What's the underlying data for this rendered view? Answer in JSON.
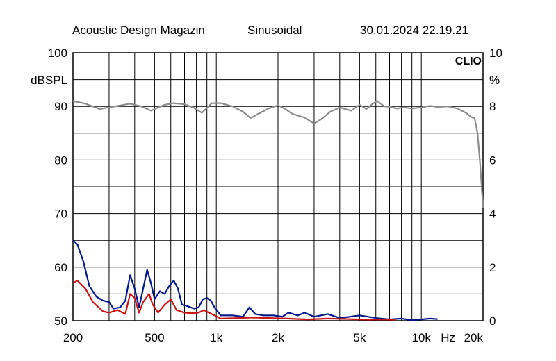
{
  "header": {
    "source": "Acoustic Design Magazin",
    "mode": "Sinusoidal",
    "timestamp": "30.01.2024 22.19.21"
  },
  "logo_text": "CLIO",
  "colors": {
    "response": "#8c8c8c",
    "distortion_blue": "#00188c",
    "distortion_red": "#c81414",
    "grid": "#000000",
    "background": "#ffffff"
  },
  "chart_data": {
    "type": "line",
    "x_scale": "log",
    "xlim": [
      200,
      20000
    ],
    "xlabel": "Hz",
    "x_ticks": [
      {
        "value": 200,
        "label": "200"
      },
      {
        "value": 500,
        "label": "500"
      },
      {
        "value": 1000,
        "label": "1k"
      },
      {
        "value": 2000,
        "label": "2k"
      },
      {
        "value": 5000,
        "label": "5k"
      },
      {
        "value": 10000,
        "label": "10k"
      },
      {
        "value": 20000,
        "label": "20k"
      }
    ],
    "x_grid": [
      200,
      300,
      400,
      500,
      600,
      700,
      800,
      900,
      1000,
      2000,
      3000,
      4000,
      5000,
      6000,
      7000,
      8000,
      9000,
      10000,
      20000
    ],
    "y_left": {
      "label": "dBSPL",
      "lim": [
        50,
        100
      ],
      "ticks": [
        50,
        60,
        70,
        80,
        90,
        100
      ]
    },
    "y_right": {
      "label": "%",
      "lim": [
        0,
        10
      ],
      "ticks": [
        0,
        2,
        4,
        6,
        8,
        10
      ]
    },
    "y_grid": [
      50,
      55,
      60,
      65,
      70,
      75,
      80,
      85,
      90,
      95,
      100
    ],
    "grid": true,
    "series": [
      {
        "axis": "left",
        "color": "#8c8c8c",
        "points": [
          [
            200,
            91
          ],
          [
            230,
            90.5
          ],
          [
            270,
            89.5
          ],
          [
            320,
            90
          ],
          [
            380,
            90.5
          ],
          [
            430,
            90
          ],
          [
            480,
            89.2
          ],
          [
            560,
            90.3
          ],
          [
            620,
            90.6
          ],
          [
            700,
            90.4
          ],
          [
            780,
            89.7
          ],
          [
            850,
            88.8
          ],
          [
            950,
            90.6
          ],
          [
            1050,
            90.6
          ],
          [
            1200,
            90
          ],
          [
            1350,
            89
          ],
          [
            1470,
            87.8
          ],
          [
            1600,
            88.6
          ],
          [
            1800,
            89.6
          ],
          [
            2000,
            90.2
          ],
          [
            2150,
            89.6
          ],
          [
            2350,
            88.6
          ],
          [
            2700,
            87.9
          ],
          [
            3000,
            86.8
          ],
          [
            3250,
            87.6
          ],
          [
            3600,
            89
          ],
          [
            4000,
            89.8
          ],
          [
            4250,
            89.5
          ],
          [
            4550,
            89.2
          ],
          [
            5000,
            90.3
          ],
          [
            5400,
            89.5
          ],
          [
            5750,
            90.4
          ],
          [
            6100,
            91
          ],
          [
            6600,
            90
          ],
          [
            7100,
            89.9
          ],
          [
            7600,
            89.6
          ],
          [
            8200,
            89.8
          ],
          [
            9000,
            89.6
          ],
          [
            10000,
            89.8
          ],
          [
            11000,
            90.1
          ],
          [
            12000,
            89.9
          ],
          [
            13500,
            90
          ],
          [
            15000,
            89.6
          ],
          [
            16500,
            88.8
          ],
          [
            17500,
            88
          ],
          [
            18200,
            87.8
          ],
          [
            18800,
            85
          ],
          [
            19300,
            80
          ],
          [
            19700,
            75
          ],
          [
            20000,
            71
          ]
        ]
      },
      {
        "axis": "right",
        "color": "#00188c",
        "points": [
          [
            200,
            3
          ],
          [
            210,
            2.85
          ],
          [
            225,
            2.2
          ],
          [
            240,
            1.3
          ],
          [
            260,
            0.9
          ],
          [
            280,
            0.75
          ],
          [
            300,
            0.7
          ],
          [
            315,
            0.45
          ],
          [
            340,
            0.5
          ],
          [
            360,
            0.75
          ],
          [
            380,
            1.7
          ],
          [
            400,
            1.2
          ],
          [
            420,
            0.5
          ],
          [
            440,
            1.2
          ],
          [
            460,
            1.9
          ],
          [
            480,
            1.4
          ],
          [
            500,
            0.8
          ],
          [
            530,
            1.1
          ],
          [
            560,
            1.0
          ],
          [
            590,
            1.3
          ],
          [
            620,
            1.5
          ],
          [
            650,
            1.2
          ],
          [
            680,
            0.6
          ],
          [
            720,
            0.55
          ],
          [
            780,
            0.45
          ],
          [
            820,
            0.5
          ],
          [
            860,
            0.8
          ],
          [
            900,
            0.85
          ],
          [
            940,
            0.75
          ],
          [
            980,
            0.5
          ],
          [
            1050,
            0.2
          ],
          [
            1200,
            0.2
          ],
          [
            1350,
            0.15
          ],
          [
            1450,
            0.5
          ],
          [
            1550,
            0.25
          ],
          [
            1700,
            0.2
          ],
          [
            1900,
            0.2
          ],
          [
            2100,
            0.15
          ],
          [
            2250,
            0.3
          ],
          [
            2500,
            0.2
          ],
          [
            2700,
            0.3
          ],
          [
            3000,
            0.15
          ],
          [
            3500,
            0.25
          ],
          [
            4000,
            0.1
          ],
          [
            4500,
            0.15
          ],
          [
            5000,
            0.2
          ],
          [
            6000,
            0.1
          ],
          [
            7000,
            0.05
          ],
          [
            8000,
            0.08
          ],
          [
            9000,
            0.02
          ],
          [
            10000,
            0.05
          ],
          [
            11000,
            0.08
          ],
          [
            12000,
            0.06
          ]
        ]
      },
      {
        "axis": "right",
        "color": "#c81414",
        "points": [
          [
            200,
            1.4
          ],
          [
            210,
            1.5
          ],
          [
            230,
            1.2
          ],
          [
            250,
            0.7
          ],
          [
            280,
            0.35
          ],
          [
            300,
            0.3
          ],
          [
            330,
            0.4
          ],
          [
            360,
            0.25
          ],
          [
            380,
            1.0
          ],
          [
            400,
            0.85
          ],
          [
            420,
            0.3
          ],
          [
            440,
            0.7
          ],
          [
            470,
            1.0
          ],
          [
            490,
            0.6
          ],
          [
            520,
            0.3
          ],
          [
            560,
            0.6
          ],
          [
            600,
            0.8
          ],
          [
            640,
            0.4
          ],
          [
            700,
            0.3
          ],
          [
            760,
            0.28
          ],
          [
            820,
            0.3
          ],
          [
            870,
            0.4
          ],
          [
            920,
            0.3
          ],
          [
            980,
            0.2
          ],
          [
            1050,
            0.08
          ],
          [
            1300,
            0.1
          ],
          [
            1500,
            0.12
          ],
          [
            1800,
            0.1
          ],
          [
            2200,
            0.08
          ],
          [
            2800,
            0.05
          ],
          [
            3500,
            0.08
          ],
          [
            4500,
            0.06
          ],
          [
            5500,
            0.04
          ],
          [
            6500,
            0.05
          ],
          [
            7500,
            0.03
          ]
        ]
      }
    ]
  }
}
